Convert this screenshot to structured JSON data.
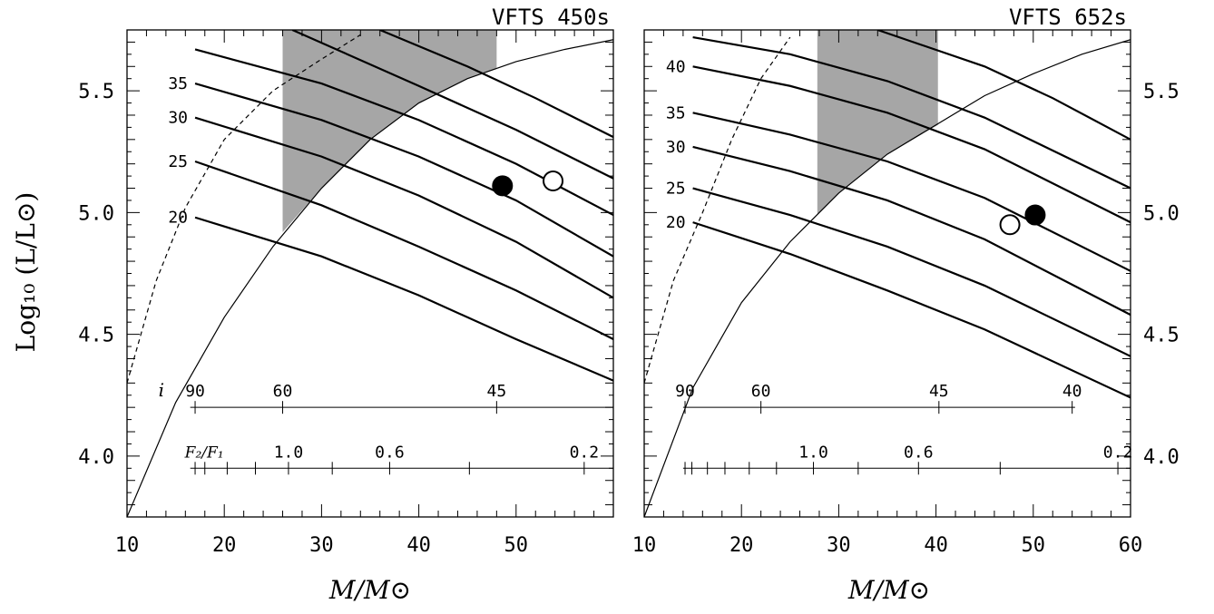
{
  "figure": {
    "ylabel": "Log₁₀ (L/L⊙)",
    "xlabel": "M/M⊙"
  },
  "chart_data": [
    {
      "type": "line",
      "title": "VFTS 450s",
      "xlabel": "M/M⊙",
      "ylabel": "Log₁₀ (L/L⊙)",
      "xlim": [
        10,
        60
      ],
      "ylim": [
        3.75,
        5.75
      ],
      "x_ticks": [
        10,
        20,
        30,
        40,
        50
      ],
      "y_ticks": [
        4.0,
        4.5,
        5.0,
        5.5
      ],
      "y_tick_labels": [
        "4.0",
        "4.5",
        "5.0",
        "5.5"
      ],
      "y_tick_side": "left",
      "isolines": [
        {
          "label": "20",
          "points": [
            [
              17,
              4.98
            ],
            [
              30,
              4.82
            ],
            [
              40,
              4.66
            ],
            [
              50,
              4.48
            ],
            [
              60,
              4.31
            ]
          ]
        },
        {
          "label": "25",
          "points": [
            [
              17,
              5.21
            ],
            [
              30,
              5.03
            ],
            [
              40,
              4.86
            ],
            [
              50,
              4.68
            ],
            [
              60,
              4.48
            ]
          ]
        },
        {
          "label": "30",
          "points": [
            [
              17,
              5.39
            ],
            [
              30,
              5.23
            ],
            [
              40,
              5.07
            ],
            [
              50,
              4.88
            ],
            [
              60,
              4.65
            ]
          ]
        },
        {
          "label": "35",
          "points": [
            [
              17,
              5.53
            ],
            [
              30,
              5.38
            ],
            [
              40,
              5.23
            ],
            [
              50,
              5.05
            ],
            [
              60,
              4.82
            ]
          ]
        },
        {
          "label": "",
          "points": [
            [
              17,
              5.67
            ],
            [
              30,
              5.53
            ],
            [
              40,
              5.38
            ],
            [
              50,
              5.2
            ],
            [
              60,
              4.99
            ]
          ]
        },
        {
          "label": "",
          "points": [
            [
              27,
              5.75
            ],
            [
              40,
              5.52
            ],
            [
              50,
              5.34
            ],
            [
              60,
              5.14
            ]
          ]
        },
        {
          "label": "",
          "points": [
            [
              36,
              5.75
            ],
            [
              45,
              5.6
            ],
            [
              52,
              5.47
            ],
            [
              60,
              5.31
            ]
          ]
        }
      ],
      "solid_curve": [
        [
          10,
          3.75
        ],
        [
          15,
          4.22
        ],
        [
          20,
          4.57
        ],
        [
          25,
          4.86
        ],
        [
          30,
          5.1
        ],
        [
          35,
          5.3
        ],
        [
          40,
          5.45
        ],
        [
          45,
          5.55
        ],
        [
          50,
          5.62
        ],
        [
          55,
          5.67
        ],
        [
          60,
          5.71
        ]
      ],
      "dashed_curve": [
        [
          10,
          4.3
        ],
        [
          13,
          4.72
        ],
        [
          16,
          5.02
        ],
        [
          20,
          5.3
        ],
        [
          25,
          5.5
        ],
        [
          30,
          5.63
        ],
        [
          34,
          5.73
        ]
      ],
      "shaded_band": {
        "x_range": [
          26,
          48
        ],
        "top": 5.75,
        "bottom_edge": [
          [
            26,
            4.92
          ],
          [
            30,
            5.1
          ],
          [
            35,
            5.3
          ],
          [
            40,
            5.45
          ],
          [
            45,
            5.55
          ],
          [
            48,
            5.59
          ]
        ],
        "top_right": [
          [
            48,
            5.75
          ],
          [
            48,
            5.53
          ]
        ]
      },
      "points": [
        {
          "name": "filled",
          "x": 48.6,
          "y": 5.11,
          "filled": true
        },
        {
          "name": "open",
          "x": 53.8,
          "y": 5.13,
          "filled": false
        }
      ],
      "scale_i": {
        "label": "i",
        "y": 4.2,
        "x_start": 16.5,
        "x_end": 60,
        "ticks": [
          {
            "x": 17,
            "label": "90"
          },
          {
            "x": 26,
            "label": "60"
          },
          {
            "x": 48,
            "label": "45"
          }
        ]
      },
      "scale_f": {
        "label": "F₂/F₁",
        "y": 3.95,
        "x_start": 16.5,
        "x_end": 60,
        "ticks": [
          {
            "x": 17.0,
            "label": ""
          },
          {
            "x": 18.0,
            "label": ""
          },
          {
            "x": 20.3,
            "label": ""
          },
          {
            "x": 23.2,
            "label": ""
          },
          {
            "x": 26.6,
            "label": "1.0"
          },
          {
            "x": 31.1,
            "label": ""
          },
          {
            "x": 37.0,
            "label": "0.6"
          },
          {
            "x": 45.2,
            "label": ""
          },
          {
            "x": 57.0,
            "label": "0.2"
          }
        ]
      }
    },
    {
      "type": "line",
      "title": "VFTS 652s",
      "xlabel": "M/M⊙",
      "ylabel": "",
      "xlim": [
        10,
        60
      ],
      "ylim": [
        3.75,
        5.75
      ],
      "x_ticks": [
        10,
        20,
        30,
        40,
        50,
        60
      ],
      "y_ticks": [
        4.0,
        4.5,
        5.0,
        5.5
      ],
      "y_tick_labels": [
        "4.0",
        "4.5",
        "5.0",
        "5.5"
      ],
      "y_tick_side": "right",
      "isolines": [
        {
          "label": "20",
          "points": [
            [
              15,
              4.96
            ],
            [
              25,
              4.83
            ],
            [
              35,
              4.68
            ],
            [
              45,
              4.52
            ],
            [
              60,
              4.24
            ]
          ]
        },
        {
          "label": "25",
          "points": [
            [
              15,
              5.1
            ],
            [
              25,
              4.99
            ],
            [
              35,
              4.86
            ],
            [
              45,
              4.7
            ],
            [
              60,
              4.41
            ]
          ]
        },
        {
          "label": "30",
          "points": [
            [
              15,
              5.27
            ],
            [
              25,
              5.17
            ],
            [
              35,
              5.05
            ],
            [
              45,
              4.89
            ],
            [
              60,
              4.58
            ]
          ]
        },
        {
          "label": "35",
          "points": [
            [
              15,
              5.41
            ],
            [
              25,
              5.32
            ],
            [
              35,
              5.21
            ],
            [
              45,
              5.06
            ],
            [
              60,
              4.76
            ]
          ]
        },
        {
          "label": "40",
          "points": [
            [
              15,
              5.6
            ],
            [
              25,
              5.52
            ],
            [
              35,
              5.41
            ],
            [
              45,
              5.26
            ],
            [
              60,
              4.96
            ]
          ]
        },
        {
          "label": "",
          "points": [
            [
              15,
              5.72
            ],
            [
              25,
              5.65
            ],
            [
              35,
              5.54
            ],
            [
              45,
              5.39
            ],
            [
              60,
              5.1
            ]
          ]
        },
        {
          "label": "",
          "points": [
            [
              34,
              5.75
            ],
            [
              45,
              5.6
            ],
            [
              52,
              5.47
            ],
            [
              60,
              5.3
            ]
          ]
        }
      ],
      "solid_curve": [
        [
          10,
          3.75
        ],
        [
          15,
          4.28
        ],
        [
          20,
          4.63
        ],
        [
          25,
          4.88
        ],
        [
          30,
          5.08
        ],
        [
          35,
          5.24
        ],
        [
          40,
          5.36
        ],
        [
          45,
          5.48
        ],
        [
          50,
          5.57
        ],
        [
          55,
          5.65
        ],
        [
          60,
          5.71
        ]
      ],
      "dashed_curve": [
        [
          10,
          4.3
        ],
        [
          13,
          4.72
        ],
        [
          16,
          5.0
        ],
        [
          19,
          5.3
        ],
        [
          22,
          5.55
        ],
        [
          25,
          5.72
        ]
      ],
      "shaded_band": {
        "x_range": [
          27.8,
          40.2
        ],
        "top": 5.75,
        "bottom_edge": [
          [
            27.8,
            4.99
          ],
          [
            30,
            5.08
          ],
          [
            35,
            5.24
          ],
          [
            40.2,
            5.36
          ]
        ],
        "top_right": [
          [
            40.2,
            5.75
          ],
          [
            40.2,
            5.36
          ]
        ]
      },
      "points": [
        {
          "name": "filled",
          "x": 50.2,
          "y": 4.99,
          "filled": true
        },
        {
          "name": "open",
          "x": 47.6,
          "y": 4.95,
          "filled": false
        }
      ],
      "scale_i": {
        "label": "",
        "y": 4.2,
        "x_start": 14,
        "x_end": 54.3,
        "ticks": [
          {
            "x": 14.2,
            "label": "90"
          },
          {
            "x": 22.0,
            "label": "60"
          },
          {
            "x": 40.3,
            "label": "45"
          },
          {
            "x": 54.0,
            "label": "40"
          }
        ]
      },
      "scale_f": {
        "label": "",
        "y": 3.95,
        "x_start": 14,
        "x_end": 60,
        "ticks": [
          {
            "x": 14.2,
            "label": ""
          },
          {
            "x": 14.9,
            "label": ""
          },
          {
            "x": 16.5,
            "label": ""
          },
          {
            "x": 18.3,
            "label": ""
          },
          {
            "x": 20.8,
            "label": ""
          },
          {
            "x": 23.6,
            "label": ""
          },
          {
            "x": 27.4,
            "label": "1.0"
          },
          {
            "x": 32.0,
            "label": ""
          },
          {
            "x": 38.2,
            "label": "0.6"
          },
          {
            "x": 46.6,
            "label": ""
          },
          {
            "x": 58.7,
            "label": "0.2"
          }
        ]
      }
    }
  ],
  "colors": {
    "shade": "#a6a6a6",
    "ink": "#000000",
    "background": "#ffffff"
  }
}
